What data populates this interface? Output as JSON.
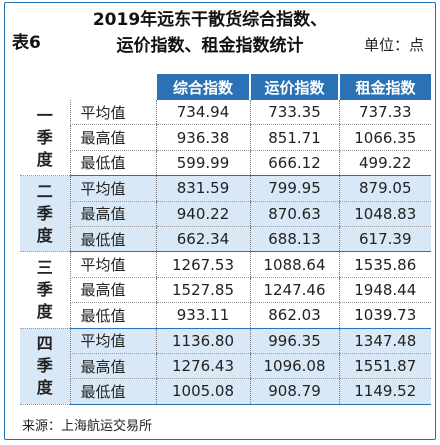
{
  "table_label": "表6",
  "title_line1": "2019年远东干散货综合指数、",
  "title_line2": "运价指数、租金指数统计",
  "unit": "单位：点",
  "columns": [
    "综合指数",
    "运价指数",
    "租金指数"
  ],
  "quarters": [
    {
      "name": "一季度",
      "rows": [
        {
          "metric": "平均值",
          "values": [
            "734.94",
            "733.35",
            "737.33"
          ]
        },
        {
          "metric": "最高值",
          "values": [
            "936.38",
            "851.71",
            "1066.35"
          ]
        },
        {
          "metric": "最低值",
          "values": [
            "599.99",
            "666.12",
            "499.22"
          ]
        }
      ]
    },
    {
      "name": "二季度",
      "rows": [
        {
          "metric": "平均值",
          "values": [
            "831.59",
            "799.95",
            "879.05"
          ]
        },
        {
          "metric": "最高值",
          "values": [
            "940.22",
            "870.63",
            "1048.83"
          ]
        },
        {
          "metric": "最低值",
          "values": [
            "662.34",
            "688.13",
            "617.39"
          ]
        }
      ]
    },
    {
      "name": "三季度",
      "rows": [
        {
          "metric": "平均值",
          "values": [
            "1267.53",
            "1088.64",
            "1535.86"
          ]
        },
        {
          "metric": "最高值",
          "values": [
            "1527.85",
            "1247.46",
            "1948.44"
          ]
        },
        {
          "metric": "最低值",
          "values": [
            "933.11",
            "862.03",
            "1039.73"
          ]
        }
      ]
    },
    {
      "name": "四季度",
      "rows": [
        {
          "metric": "平均值",
          "values": [
            "1136.80",
            "996.35",
            "1347.48"
          ]
        },
        {
          "metric": "最高值",
          "values": [
            "1276.43",
            "1096.08",
            "1551.87"
          ]
        },
        {
          "metric": "最低值",
          "values": [
            "1005.08",
            "908.79",
            "1149.52"
          ]
        }
      ]
    }
  ],
  "source": "来源：上海航运交易所",
  "colors": {
    "accent": "#2a72b4",
    "shade": "#d9e8f6"
  }
}
